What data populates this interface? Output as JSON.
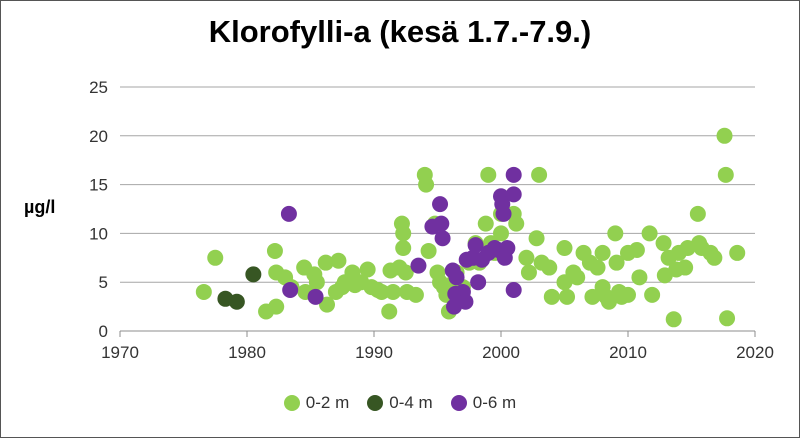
{
  "chart_data": {
    "type": "scatter",
    "title": "Klorofylli-a (kesä 1.7.-7.9.)",
    "ylabel": "µg/l",
    "xlabel": "",
    "xlim": [
      1970,
      2020
    ],
    "ylim": [
      0,
      25
    ],
    "x_ticks": [
      "1970",
      "1980",
      "1990",
      "2000",
      "2010",
      "2020"
    ],
    "y_ticks": [
      "0",
      "5",
      "10",
      "15",
      "20",
      "25"
    ],
    "grid": "horizontal",
    "legend": "bottom",
    "series": [
      {
        "name": "0-2 m",
        "color": "#92d050",
        "points": [
          [
            1976.6,
            4.0
          ],
          [
            1977.5,
            7.5
          ],
          [
            1981.5,
            2.0
          ],
          [
            1982.2,
            8.2
          ],
          [
            1982.3,
            6.0
          ],
          [
            1982.3,
            2.5
          ],
          [
            1983.0,
            5.5
          ],
          [
            1983.5,
            4.5
          ],
          [
            1984.5,
            6.5
          ],
          [
            1984.6,
            4.0
          ],
          [
            1985.3,
            5.8
          ],
          [
            1985.5,
            5.0
          ],
          [
            1986.2,
            7.0
          ],
          [
            1986.3,
            2.7
          ],
          [
            1987.0,
            4.0
          ],
          [
            1987.2,
            7.2
          ],
          [
            1987.5,
            4.5
          ],
          [
            1987.7,
            5.0
          ],
          [
            1988.3,
            6.0
          ],
          [
            1988.5,
            4.7
          ],
          [
            1989.0,
            5.0
          ],
          [
            1989.5,
            6.3
          ],
          [
            1989.8,
            4.5
          ],
          [
            1990.3,
            4.2
          ],
          [
            1990.6,
            4.0
          ],
          [
            1991.2,
            2.0
          ],
          [
            1991.3,
            6.2
          ],
          [
            1991.5,
            4.0
          ],
          [
            1992.0,
            6.5
          ],
          [
            1992.2,
            11.0
          ],
          [
            1992.3,
            10.0
          ],
          [
            1992.3,
            8.5
          ],
          [
            1992.5,
            6.0
          ],
          [
            1992.6,
            4.0
          ],
          [
            1993.3,
            3.7
          ],
          [
            1994.0,
            16.0
          ],
          [
            1994.1,
            15.0
          ],
          [
            1994.3,
            8.2
          ],
          [
            1994.8,
            11.0
          ],
          [
            1995.0,
            6.0
          ],
          [
            1995.2,
            5.0
          ],
          [
            1995.5,
            4.5
          ],
          [
            1995.7,
            3.7
          ],
          [
            1995.9,
            2.0
          ],
          [
            1996.3,
            5.0
          ],
          [
            1996.5,
            6.0
          ],
          [
            1997.0,
            4.5
          ],
          [
            1997.5,
            7.0
          ],
          [
            1998.0,
            9.0
          ],
          [
            1998.3,
            7.0
          ],
          [
            1998.8,
            11.0
          ],
          [
            1999.0,
            16.0
          ],
          [
            1999.2,
            9.0
          ],
          [
            1999.5,
            8.0
          ],
          [
            2000.0,
            12.0
          ],
          [
            2000.0,
            10.0
          ],
          [
            2001.0,
            12.0
          ],
          [
            2001.2,
            11.0
          ],
          [
            2002.0,
            7.5
          ],
          [
            2002.2,
            6.0
          ],
          [
            2002.8,
            9.5
          ],
          [
            2003.0,
            16.0
          ],
          [
            2003.2,
            7.0
          ],
          [
            2003.8,
            6.5
          ],
          [
            2004.0,
            3.5
          ],
          [
            2005.0,
            8.5
          ],
          [
            2005.0,
            5.0
          ],
          [
            2005.2,
            3.5
          ],
          [
            2005.7,
            6.0
          ],
          [
            2006.0,
            5.5
          ],
          [
            2006.5,
            8.0
          ],
          [
            2007.0,
            7.0
          ],
          [
            2007.2,
            3.5
          ],
          [
            2007.6,
            6.5
          ],
          [
            2008.0,
            8.0
          ],
          [
            2008.0,
            4.5
          ],
          [
            2008.3,
            3.5
          ],
          [
            2008.5,
            3.0
          ],
          [
            2009.0,
            10.0
          ],
          [
            2009.1,
            7.0
          ],
          [
            2009.3,
            4.0
          ],
          [
            2009.5,
            3.5
          ],
          [
            2010.0,
            8.0
          ],
          [
            2010.0,
            3.7
          ],
          [
            2010.7,
            8.3
          ],
          [
            2010.9,
            5.5
          ],
          [
            2011.7,
            10.0
          ],
          [
            2011.9,
            3.7
          ],
          [
            2012.8,
            9.0
          ],
          [
            2012.9,
            5.7
          ],
          [
            2013.2,
            7.5
          ],
          [
            2013.6,
            1.2
          ],
          [
            2013.8,
            6.3
          ],
          [
            2014.0,
            8.0
          ],
          [
            2014.5,
            6.5
          ],
          [
            2014.7,
            8.5
          ],
          [
            2015.5,
            12.0
          ],
          [
            2015.6,
            9.0
          ],
          [
            2015.8,
            8.5
          ],
          [
            2016.5,
            8.0
          ],
          [
            2016.8,
            7.5
          ],
          [
            2017.6,
            20.0
          ],
          [
            2017.7,
            16.0
          ],
          [
            2017.8,
            1.3
          ],
          [
            2018.6,
            8.0
          ]
        ]
      },
      {
        "name": "0-4 m",
        "color": "#375623",
        "points": [
          [
            1978.3,
            3.3
          ],
          [
            1979.2,
            3.0
          ],
          [
            1980.5,
            5.8
          ]
        ]
      },
      {
        "name": "0-6 m",
        "color": "#7030a0",
        "points": [
          [
            1983.3,
            12.0
          ],
          [
            1983.4,
            4.2
          ],
          [
            1985.4,
            3.5
          ],
          [
            1993.5,
            6.7
          ],
          [
            1994.6,
            10.7
          ],
          [
            1995.2,
            13.0
          ],
          [
            1995.3,
            11.0
          ],
          [
            1995.4,
            9.5
          ],
          [
            1996.2,
            6.2
          ],
          [
            1996.3,
            2.5
          ],
          [
            1996.4,
            3.8
          ],
          [
            1996.5,
            5.5
          ],
          [
            1997.0,
            4.0
          ],
          [
            1997.2,
            3.0
          ],
          [
            1997.3,
            7.3
          ],
          [
            1997.8,
            7.5
          ],
          [
            1998.0,
            8.8
          ],
          [
            1998.2,
            5.0
          ],
          [
            1998.5,
            7.3
          ],
          [
            1999.0,
            8.0
          ],
          [
            1999.5,
            8.5
          ],
          [
            1999.8,
            8.3
          ],
          [
            2000.0,
            13.8
          ],
          [
            2000.1,
            13.0
          ],
          [
            2000.2,
            12.0
          ],
          [
            2000.3,
            7.5
          ],
          [
            2000.5,
            8.5
          ],
          [
            2001.0,
            16.0
          ],
          [
            2001.0,
            14.0
          ],
          [
            2001.0,
            4.2
          ]
        ]
      }
    ]
  },
  "legend": {
    "items": [
      {
        "label": "0-2 m",
        "color": "#92d050"
      },
      {
        "label": "0-4 m",
        "color": "#375623"
      },
      {
        "label": "0-6 m",
        "color": "#7030a0"
      }
    ]
  },
  "colors": {
    "gridline": "#a6a6a6",
    "axis": "#8c8c8c"
  }
}
